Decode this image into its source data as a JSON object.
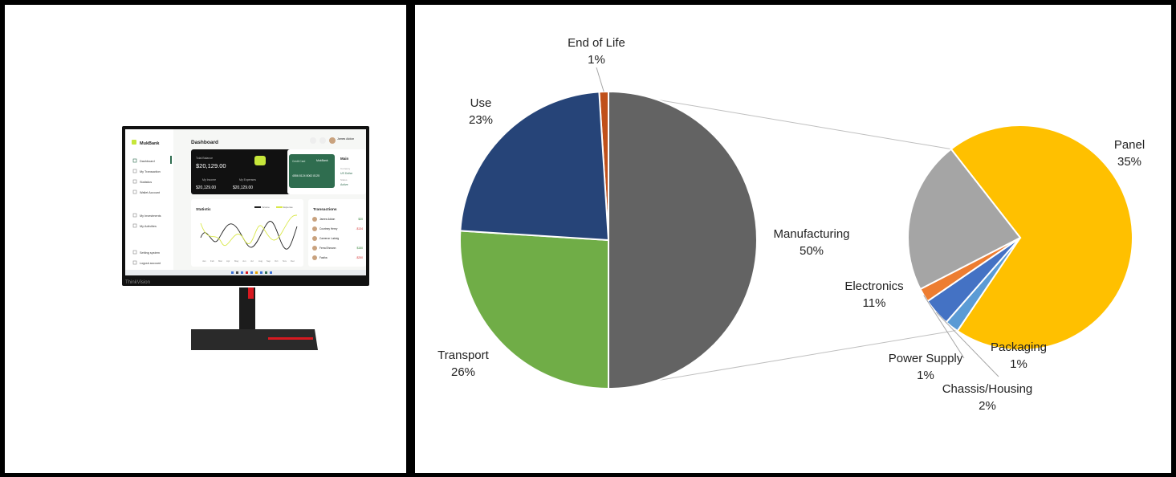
{
  "monitor": {
    "brand": "MukBank",
    "page_title": "Dashboard",
    "user_name": "James Addon",
    "nav": [
      "Dashboard",
      "My Transaction",
      "Statistics",
      "Wallet Account"
    ],
    "nav2": [
      "My Investments",
      "My Activities"
    ],
    "nav3": [
      "Setting system",
      "Logout account"
    ],
    "balance_label": "Total Balance",
    "balance_value": "$20,129.00",
    "income_label": "My Income",
    "income_value": "$20,129.00",
    "expense_label": "My Expenses",
    "expense_value": "$20,129.00",
    "card_label": "Credit Card",
    "card_brand": "MukBank",
    "card_number": "4556 8124 8062 8125",
    "card_side_title": "Main",
    "card_currency_label": "Currency",
    "card_currency": "US Dollar",
    "card_status_label": "Status",
    "card_status": "Active",
    "statistic_title": "Statistic",
    "legend_income": "Income",
    "legend_expense": "Expense",
    "months": [
      "Jan",
      "Feb",
      "Mar",
      "Apr",
      "May",
      "Jun",
      "Jul",
      "Aug",
      "Sep",
      "Oct",
      "Nov",
      "Dec"
    ],
    "transactions_title": "Transactions",
    "transactions": [
      {
        "name": "James Addon",
        "amount": "$20",
        "color": "#2e7d32"
      },
      {
        "name": "Courtney Henry",
        "amount": "-$134",
        "color": "#d32f2f"
      },
      {
        "name": "Cameron Ludwig",
        "amount": "",
        "color": "#2e7d32"
      },
      {
        "name": "Ferra Ehmann",
        "amount": "$150",
        "color": "#2e7d32"
      },
      {
        "name": "Fasiha",
        "amount": "-$250",
        "color": "#d32f2f"
      }
    ],
    "maker_logo": "ThinkVision",
    "accent_red": "#d71920",
    "accent_green": "#2f6d4f",
    "accent_lime": "#c6e63a"
  },
  "chart_data": {
    "type": "pie",
    "subtype": "pie-of-pie",
    "title": "",
    "main": {
      "slices": [
        {
          "label": "End of Life",
          "value": 1,
          "pct_label": "1%",
          "color": "#c0501a"
        },
        {
          "label": "Manufacturing",
          "value": 50,
          "pct_label": "50%",
          "color": "#636363"
        },
        {
          "label": "Transport",
          "value": 26,
          "pct_label": "26%",
          "color": "#70ad47"
        },
        {
          "label": "Use",
          "value": 23,
          "pct_label": "23%",
          "color": "#264478"
        }
      ]
    },
    "secondary": {
      "breakdown_of": "Manufacturing",
      "slices": [
        {
          "label": "Panel",
          "value": 35,
          "pct_label": "35%",
          "color": "#ffc000"
        },
        {
          "label": "Packaging",
          "value": 1,
          "pct_label": "1%",
          "color": "#5b9bd5"
        },
        {
          "label": "Chassis/Housing",
          "value": 2,
          "pct_label": "2%",
          "color": "#4472c4"
        },
        {
          "label": "Power Supply",
          "value": 1,
          "pct_label": "1%",
          "color": "#ed7d31"
        },
        {
          "label": "Electronics",
          "value": 11,
          "pct_label": "11%",
          "color": "#a5a5a5"
        }
      ]
    },
    "legend": "none"
  }
}
